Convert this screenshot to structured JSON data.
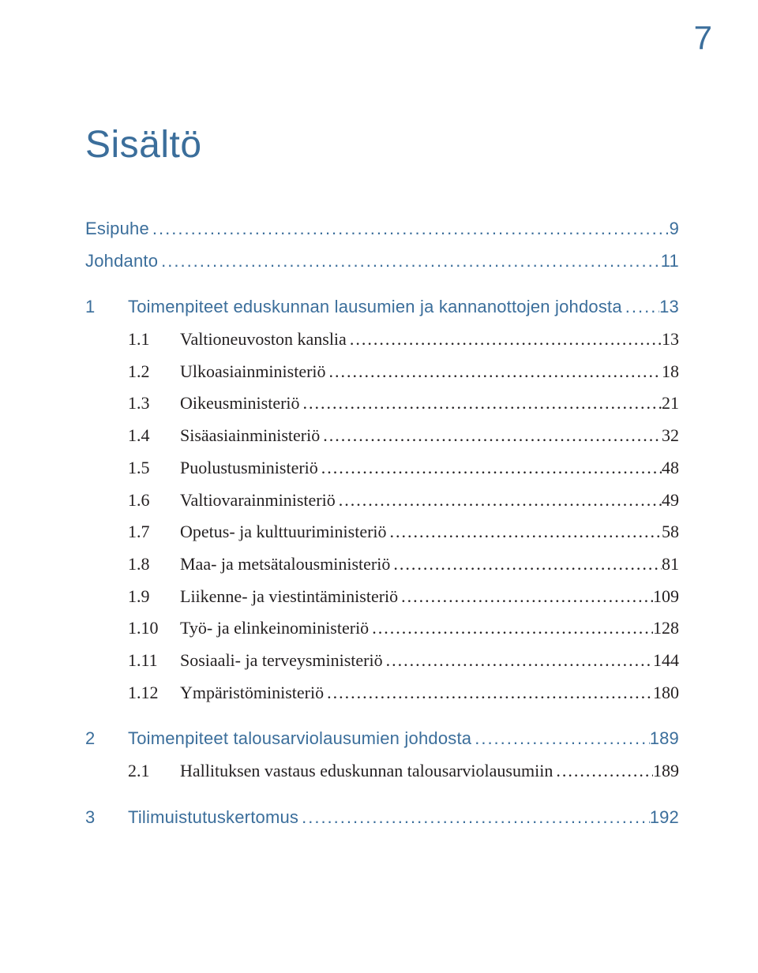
{
  "pageNumber": "7",
  "title": "Sisältö",
  "colors": {
    "accent": "#3b6e9b",
    "text": "#231f20",
    "background": "#ffffff"
  },
  "fonts": {
    "title_family": "Helvetica Neue",
    "title_size_pt": 36,
    "heading_family": "Helvetica Neue",
    "body_family": "Times New Roman",
    "row_size_pt": 16
  },
  "toc": [
    {
      "kind": "heading",
      "num": "",
      "label": "Esipuhe",
      "page": "9"
    },
    {
      "kind": "heading",
      "num": "",
      "label": "Johdanto",
      "page": "11"
    },
    {
      "kind": "heading",
      "num": "1",
      "label": "Toimenpiteet eduskunnan lausumien ja kannanottojen johdosta",
      "page": "13",
      "gapTop": true
    },
    {
      "kind": "sub",
      "num": "1.1",
      "label": "Valtioneuvoston kanslia",
      "page": "13"
    },
    {
      "kind": "sub",
      "num": "1.2",
      "label": "Ulkoasiainministeriö",
      "page": "18"
    },
    {
      "kind": "sub",
      "num": "1.3",
      "label": "Oikeusministeriö",
      "page": "21"
    },
    {
      "kind": "sub",
      "num": "1.4",
      "label": "Sisäasiainministeriö",
      "page": "32"
    },
    {
      "kind": "sub",
      "num": "1.5",
      "label": "Puolustusministeriö",
      "page": "48"
    },
    {
      "kind": "sub",
      "num": "1.6",
      "label": "Valtiovarainministeriö",
      "page": "49"
    },
    {
      "kind": "sub",
      "num": "1.7",
      "label": "Opetus- ja kulttuuriministeriö",
      "page": "58"
    },
    {
      "kind": "sub",
      "num": "1.8",
      "label": "Maa- ja metsätalousministeriö",
      "page": "81"
    },
    {
      "kind": "sub",
      "num": "1.9",
      "label": "Liikenne- ja viestintäministeriö",
      "page": "109"
    },
    {
      "kind": "sub",
      "num": "1.10",
      "label": "Työ- ja elinkeinoministeriö",
      "page": "128"
    },
    {
      "kind": "sub",
      "num": "1.11",
      "label": "Sosiaali- ja terveysministeriö",
      "page": "144"
    },
    {
      "kind": "sub",
      "num": "1.12",
      "label": "Ympäristöministeriö",
      "page": "180"
    },
    {
      "kind": "heading",
      "num": "2",
      "label": "Toimenpiteet talousarviolausumien johdosta",
      "page": "189",
      "gapTop": true
    },
    {
      "kind": "sub",
      "num": "2.1",
      "label": "Hallituksen vastaus eduskunnan talousarviolausumiin",
      "page": "189"
    },
    {
      "kind": "heading",
      "num": "3",
      "label": "Tilimuistutuskertomus",
      "page": "192",
      "gapTop": true
    }
  ]
}
